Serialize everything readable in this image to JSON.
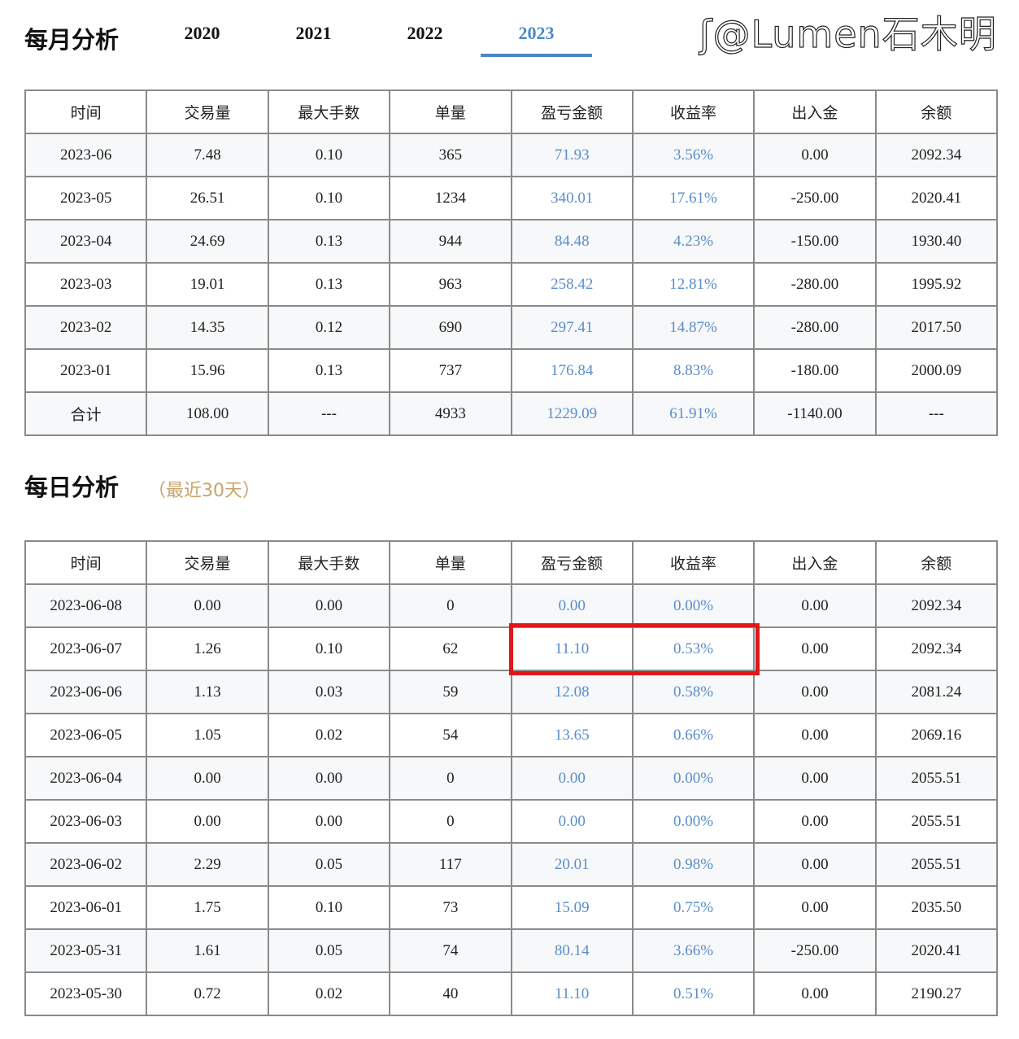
{
  "monthly": {
    "title": "每月分析",
    "tabs": [
      "2020",
      "2021",
      "2022",
      "2023"
    ],
    "active_tab": "2023",
    "headers": [
      "时间",
      "交易量",
      "最大手数",
      "单量",
      "盈亏金额",
      "收益率",
      "出入金",
      "余额"
    ],
    "rows": [
      [
        "2023-06",
        "7.48",
        "0.10",
        "365",
        "71.93",
        "3.56%",
        "0.00",
        "2092.34"
      ],
      [
        "2023-05",
        "26.51",
        "0.10",
        "1234",
        "340.01",
        "17.61%",
        "-250.00",
        "2020.41"
      ],
      [
        "2023-04",
        "24.69",
        "0.13",
        "944",
        "84.48",
        "4.23%",
        "-150.00",
        "1930.40"
      ],
      [
        "2023-03",
        "19.01",
        "0.13",
        "963",
        "258.42",
        "12.81%",
        "-280.00",
        "1995.92"
      ],
      [
        "2023-02",
        "14.35",
        "0.12",
        "690",
        "297.41",
        "14.87%",
        "-280.00",
        "2017.50"
      ],
      [
        "2023-01",
        "15.96",
        "0.13",
        "737",
        "176.84",
        "8.83%",
        "-180.00",
        "2000.09"
      ],
      [
        "合计",
        "108.00",
        "---",
        "4933",
        "1229.09",
        "61.91%",
        "-1140.00",
        "---"
      ]
    ]
  },
  "daily": {
    "title": "每日分析",
    "subtitle": "（最近30天）",
    "headers": [
      "时间",
      "交易量",
      "最大手数",
      "单量",
      "盈亏金额",
      "收益率",
      "出入金",
      "余额"
    ],
    "rows": [
      [
        "2023-06-08",
        "0.00",
        "0.00",
        "0",
        "0.00",
        "0.00%",
        "0.00",
        "2092.34"
      ],
      [
        "2023-06-07",
        "1.26",
        "0.10",
        "62",
        "11.10",
        "0.53%",
        "0.00",
        "2092.34"
      ],
      [
        "2023-06-06",
        "1.13",
        "0.03",
        "59",
        "12.08",
        "0.58%",
        "0.00",
        "2081.24"
      ],
      [
        "2023-06-05",
        "1.05",
        "0.02",
        "54",
        "13.65",
        "0.66%",
        "0.00",
        "2069.16"
      ],
      [
        "2023-06-04",
        "0.00",
        "0.00",
        "0",
        "0.00",
        "0.00%",
        "0.00",
        "2055.51"
      ],
      [
        "2023-06-03",
        "0.00",
        "0.00",
        "0",
        "0.00",
        "0.00%",
        "0.00",
        "2055.51"
      ],
      [
        "2023-06-02",
        "2.29",
        "0.05",
        "117",
        "20.01",
        "0.98%",
        "0.00",
        "2055.51"
      ],
      [
        "2023-06-01",
        "1.75",
        "0.10",
        "73",
        "15.09",
        "0.75%",
        "0.00",
        "2035.50"
      ],
      [
        "2023-05-31",
        "1.61",
        "0.05",
        "74",
        "80.14",
        "3.66%",
        "-250.00",
        "2020.41"
      ],
      [
        "2023-05-30",
        "0.72",
        "0.02",
        "40",
        "11.10",
        "0.51%",
        "0.00",
        "2190.27"
      ]
    ]
  },
  "highlight_color": "#e0161b",
  "accent": "#4a88c6",
  "watermark": "@Lumen石木明"
}
